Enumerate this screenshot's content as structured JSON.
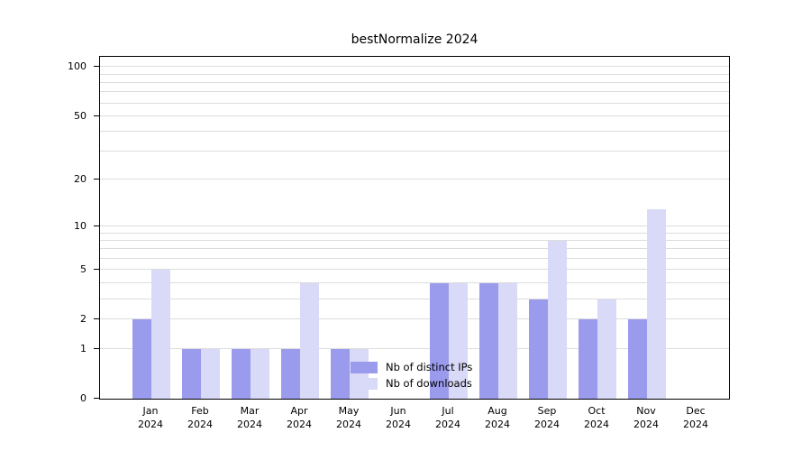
{
  "title": "bestNormalize 2024",
  "chart_data": {
    "type": "bar",
    "title": "bestNormalize 2024",
    "scale": "log10(value+1)",
    "grid": true,
    "categories": [
      "Jan 2024",
      "Feb 2024",
      "Mar 2024",
      "Apr 2024",
      "May 2024",
      "Jun 2024",
      "Jul 2024",
      "Aug 2024",
      "Sep 2024",
      "Oct 2024",
      "Nov 2024",
      "Dec 2024"
    ],
    "series": [
      {
        "name": "Nb of distinct IPs",
        "color": "#9b9bee",
        "values": [
          2,
          1,
          1,
          1,
          1,
          0,
          4,
          4,
          3,
          2,
          2,
          0
        ]
      },
      {
        "name": "Nb of downloads",
        "color": "#d9d9f8",
        "values": [
          5,
          1,
          1,
          4,
          1,
          0,
          4,
          4,
          8,
          3,
          13,
          0
        ]
      }
    ],
    "y_ticks": [
      0,
      1,
      2,
      5,
      10,
      20,
      50,
      100
    ],
    "minor_gridlines": [
      1,
      2,
      3,
      4,
      5,
      6,
      7,
      8,
      9,
      10,
      20,
      30,
      40,
      50,
      60,
      70,
      80,
      90,
      100
    ],
    "ylim": [
      0,
      115
    ],
    "legend": {
      "entries": [
        "Nb of distinct IPs",
        "Nb of downloads"
      ],
      "position": "bottom-center"
    }
  }
}
